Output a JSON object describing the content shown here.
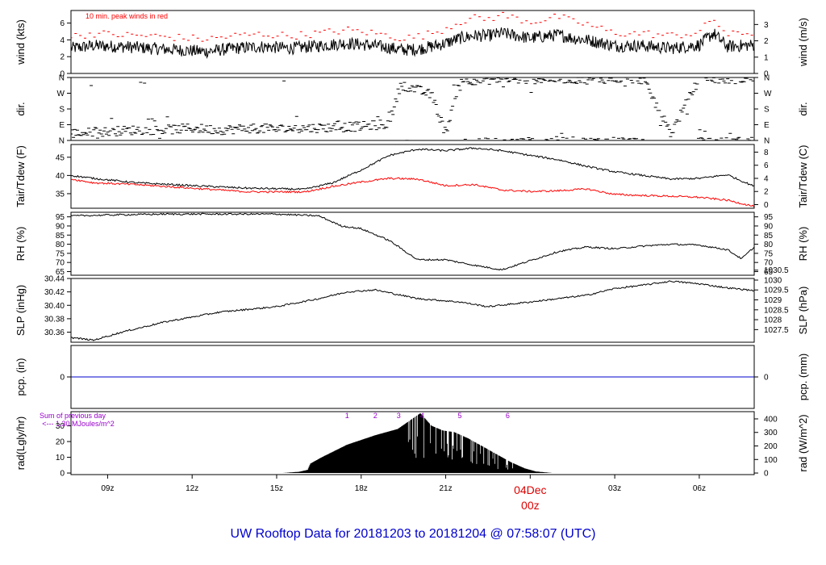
{
  "title": "UW Rooftop Data for 20181203  to  20181204 @ 07:58:07  (UTC)",
  "colors": {
    "axis": "#000000",
    "trace": "#000000",
    "red": "#ff0000",
    "blue": "#0000cc",
    "purple": "#9900cc",
    "date_red": "#dd0000"
  },
  "chart_data": {
    "type": "line",
    "x_axis": {
      "unit": "hours UTC from 20181203 00z",
      "range": [
        7.7,
        31.95
      ],
      "ticks": [
        {
          "x": 9,
          "label": "09z"
        },
        {
          "x": 12,
          "label": "12z"
        },
        {
          "x": 15,
          "label": "15z"
        },
        {
          "x": 18,
          "label": "18z"
        },
        {
          "x": 21,
          "label": "21z"
        },
        {
          "x": 27,
          "label": "03z"
        },
        {
          "x": 30,
          "label": "06z"
        }
      ],
      "date_marker": {
        "x": 24,
        "date": "04Dec",
        "time": "00z"
      }
    },
    "panels": [
      {
        "id": "wind",
        "ylabel_left": "wind (kts)",
        "ylabel_right": "wind (m/s)",
        "ylim": [
          0,
          7.5
        ],
        "left_ticks": [
          0,
          2,
          4,
          6
        ],
        "right_ticks": [
          {
            "v": 0,
            "label": "0"
          },
          {
            "v": 1.944,
            "label": "1"
          },
          {
            "v": 3.888,
            "label": "2"
          },
          {
            "v": 5.832,
            "label": "3"
          }
        ],
        "annotation": "10 min. peak winds in red",
        "series": [
          {
            "name": "wind",
            "style": "line",
            "color": "black",
            "x": [
              7.7,
              8.5,
              9.5,
              10.5,
              11.5,
              12.5,
              13.5,
              14.5,
              15.5,
              16.5,
              17.5,
              18.5,
              19.5,
              20,
              20.5,
              21,
              21.5,
              22,
              22.5,
              23,
              23.5,
              24,
              24.5,
              25,
              25.5,
              26,
              27,
              28,
              29,
              30,
              30.5,
              31,
              31.95
            ],
            "y": [
              3.0,
              3.3,
              3.2,
              3.0,
              2.8,
              2.6,
              3.0,
              3.2,
              3.0,
              3.3,
              3.6,
              3.3,
              2.8,
              2.9,
              3.2,
              3.6,
              4.2,
              4.5,
              4.5,
              4.8,
              4.5,
              4.2,
              4.4,
              4.6,
              4.2,
              4.0,
              3.3,
              3.3,
              3.0,
              3.4,
              4.8,
              3.2,
              3.4
            ]
          },
          {
            "name": "10 min. peak winds",
            "style": "dash",
            "color": "red",
            "x": [
              7.7,
              8.5,
              9.5,
              10.5,
              11.5,
              12.5,
              13.5,
              14.5,
              15.5,
              16.5,
              17.5,
              18.5,
              19.5,
              20,
              20.5,
              21,
              21.5,
              22,
              22.5,
              23,
              23.5,
              24,
              24.5,
              25,
              25.5,
              26,
              27,
              28,
              29,
              30,
              30.5,
              31,
              31.95
            ],
            "y": [
              4.2,
              4.6,
              4.4,
              4.3,
              4.1,
              3.9,
              4.3,
              4.5,
              4.3,
              4.6,
              5.0,
              4.6,
              4.0,
              4.2,
              4.6,
              5.2,
              6.0,
              6.4,
              6.3,
              6.8,
              6.4,
              6.0,
              6.2,
              6.6,
              6.0,
              5.7,
              4.6,
              4.6,
              4.3,
              4.7,
              6.4,
              4.4,
              4.7
            ]
          }
        ]
      },
      {
        "id": "dir",
        "ylabel_left": "dir.",
        "ylabel_right": "dir.",
        "ylim": [
          0,
          360
        ],
        "left_ticks": [
          {
            "v": 0,
            "label": "N"
          },
          {
            "v": 90,
            "label": "E"
          },
          {
            "v": 180,
            "label": "S"
          },
          {
            "v": 270,
            "label": "W"
          },
          {
            "v": 360,
            "label": "N"
          }
        ],
        "series": [
          {
            "name": "wind direction",
            "style": "dash",
            "color": "black",
            "x": [
              7.7,
              9,
              10,
              11,
              12,
              13,
              14,
              15,
              16,
              17,
              18,
              19,
              19.4,
              19.8,
              20.5,
              21,
              21.5,
              22,
              23,
              24,
              25,
              26,
              27,
              28,
              29,
              30,
              31,
              31.95
            ],
            "y": [
              40,
              50,
              60,
              60,
              70,
              60,
              70,
              65,
              70,
              75,
              80,
              95,
              320,
              300,
              260,
              40,
              350,
              345,
              350,
              350,
              355,
              350,
              355,
              350,
              40,
              355,
              350,
              355
            ]
          }
        ]
      },
      {
        "id": "temp",
        "ylabel_left": "Tair/Tdew (F)",
        "ylabel_right": "Tair/Tdew (C)",
        "ylim": [
          31,
          48.5
        ],
        "left_ticks": [
          35,
          40,
          45
        ],
        "right_ticks": [
          {
            "v": 32,
            "label": "0"
          },
          {
            "v": 35.6,
            "label": "2"
          },
          {
            "v": 39.2,
            "label": "4"
          },
          {
            "v": 42.8,
            "label": "6"
          },
          {
            "v": 46.4,
            "label": "8"
          }
        ],
        "series": [
          {
            "name": "Tair",
            "style": "line",
            "color": "black",
            "x": [
              7.7,
              8.5,
              10,
              12,
              14,
              16,
              17,
              18,
              19,
              20,
              21,
              22,
              23,
              24,
              25,
              26,
              27,
              28,
              29,
              30,
              31,
              31.95
            ],
            "y": [
              40,
              39.2,
              38,
              37.2,
              36.5,
              36.2,
              38,
              41.5,
              45.5,
              47.2,
              46.8,
              47.5,
              46.8,
              45.5,
              44.3,
              42.5,
              41.0,
              40.0,
              39.0,
              39.2,
              40.2,
              37.0
            ]
          },
          {
            "name": "Tdew",
            "style": "line",
            "color": "red",
            "x": [
              7.7,
              8.5,
              10,
              12,
              14,
              16,
              17,
              18,
              19,
              20,
              21,
              22,
              23,
              24,
              25,
              26,
              27,
              28,
              29,
              30,
              31,
              31.95
            ],
            "y": [
              39,
              38,
              37.5,
              36.5,
              35.5,
              35.5,
              37,
              38.2,
              39.2,
              39,
              37.2,
              37.5,
              36,
              35.6,
              35.8,
              36.3,
              34.8,
              34.5,
              34.3,
              34.0,
              33.2,
              31.5
            ]
          }
        ]
      },
      {
        "id": "rh",
        "ylabel_left": "RH (%)",
        "ylabel_right": "RH (%)",
        "ylim": [
          63,
          97.5
        ],
        "left_ticks": [
          65,
          70,
          75,
          80,
          85,
          90,
          95
        ],
        "right_ticks": [
          {
            "v": 65,
            "label": "65"
          },
          {
            "v": 70,
            "label": "70"
          },
          {
            "v": 75,
            "label": "75"
          },
          {
            "v": 80,
            "label": "80"
          },
          {
            "v": 85,
            "label": "85"
          },
          {
            "v": 90,
            "label": "90"
          },
          {
            "v": 95,
            "label": "95"
          }
        ],
        "series": [
          {
            "name": "RH",
            "style": "line",
            "color": "black",
            "x": [
              7.7,
              9,
              11,
              13,
              15,
              16.5,
              17.3,
              18,
              19,
              20,
              21,
              22,
              23,
              24,
              25,
              26,
              27,
              28,
              29,
              30,
              31,
              31.5,
              31.95
            ],
            "y": [
              95.5,
              96,
              96.5,
              96.5,
              96.5,
              95.5,
              90,
              88.5,
              82,
              71.5,
              71.5,
              68.5,
              66,
              71,
              76,
              78.5,
              77.5,
              79,
              80,
              79.5,
              77,
              72,
              78.5
            ]
          }
        ]
      },
      {
        "id": "slp",
        "ylabel_left": "SLP (inHg)",
        "ylabel_right": "SLP (hPa)",
        "ylim": [
          30.345,
          30.44
        ],
        "left_ticks": [
          {
            "v": 30.36,
            "label": "30.36"
          },
          {
            "v": 30.38,
            "label": "30.38"
          },
          {
            "v": 30.4,
            "label": "30.40"
          },
          {
            "v": 30.42,
            "label": "30.42"
          },
          {
            "v": 30.44,
            "label": "30.44"
          }
        ],
        "right_ticks": [
          {
            "v": 30.3638,
            "label": "1027.5"
          },
          {
            "v": 30.3786,
            "label": "1028"
          },
          {
            "v": 30.3933,
            "label": "1028.5"
          },
          {
            "v": 30.4081,
            "label": "1029"
          },
          {
            "v": 30.4229,
            "label": "1029.5"
          },
          {
            "v": 30.4376,
            "label": "1030"
          },
          {
            "v": 30.4524,
            "label": "1030.5"
          }
        ],
        "series": [
          {
            "name": "SLP",
            "style": "line",
            "color": "black",
            "x": [
              7.7,
              8.5,
              9.5,
              11,
              13,
              15,
              16.5,
              17.5,
              18.5,
              20,
              21.5,
              22.5,
              24,
              25,
              26,
              27,
              28,
              29,
              30,
              31,
              31.95
            ],
            "y": [
              30.352,
              30.348,
              30.36,
              30.375,
              30.39,
              30.398,
              30.41,
              30.42,
              30.423,
              30.41,
              30.405,
              30.398,
              30.405,
              30.41,
              30.415,
              30.425,
              30.43,
              30.436,
              30.432,
              30.426,
              30.422
            ]
          }
        ]
      },
      {
        "id": "pcp",
        "ylabel_left": "pcp. (in)",
        "ylabel_right": "pcp. (mm)",
        "ylim": [
          -1,
          1
        ],
        "left_ticks": [
          0
        ],
        "right_ticks": [
          {
            "v": 0,
            "label": "0"
          }
        ],
        "series": [
          {
            "name": "precip",
            "style": "line",
            "color": "blue",
            "x": [
              7.7,
              31.95
            ],
            "y": [
              0,
              0
            ]
          }
        ]
      },
      {
        "id": "rad",
        "ylabel_left": "rad(Lgly/hr)",
        "ylabel_right": "rad (W/m^2)",
        "ylim": [
          -1,
          39
        ],
        "left_ticks": [
          0,
          10,
          20,
          30
        ],
        "right_ticks": [
          {
            "v": 0,
            "label": "0"
          },
          {
            "v": 8.6,
            "label": "100"
          },
          {
            "v": 17.2,
            "label": "200"
          },
          {
            "v": 25.8,
            "label": "300"
          },
          {
            "v": 34.4,
            "label": "400"
          }
        ],
        "annotations": [
          "Sum of previous day",
          "<--- 1.30 MJoules/m^2"
        ],
        "hour_marks": [
          {
            "x": 17.5,
            "label": "1"
          },
          {
            "x": 18.5,
            "label": "2"
          },
          {
            "x": 19.33,
            "label": "3"
          },
          {
            "x": 20.17,
            "label": "4"
          },
          {
            "x": 21.5,
            "label": "5"
          },
          {
            "x": 23.2,
            "label": "6"
          }
        ],
        "series": [
          {
            "name": "radiation",
            "style": "area",
            "color": "black",
            "x": [
              15.2,
              15.8,
              16.1,
              16.2,
              16.6,
              17.5,
              18.5,
              19.3,
              19.7,
              20.1,
              20.5,
              20.9,
              21.3,
              21.8,
              22.3,
              22.8,
              23.3,
              23.8,
              24.2,
              24.8
            ],
            "y": [
              0,
              0.8,
              2,
              6,
              10,
              18,
              24,
              28,
              33,
              38,
              30,
              27,
              26,
              22,
              17,
              12,
              7,
              3,
              1,
              0
            ]
          }
        ]
      }
    ]
  }
}
